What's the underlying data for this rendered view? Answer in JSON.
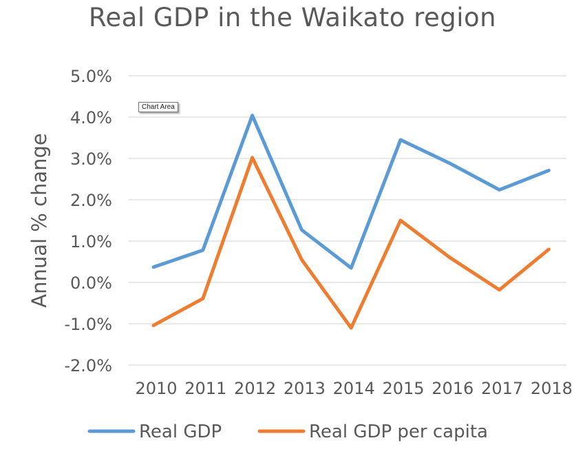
{
  "chart_data": {
    "type": "line",
    "title": "Real GDP in the Waikato region",
    "xlabel": "",
    "ylabel": "Annual % change",
    "categories": [
      "2010",
      "2011",
      "2012",
      "2013",
      "2014",
      "2015",
      "2016",
      "2017",
      "2018"
    ],
    "ylim": [
      -2.0,
      5.0
    ],
    "yticks": [
      "5.0%",
      "4.0%",
      "3.0%",
      "2.0%",
      "1.0%",
      "0.0%",
      "-1.0%",
      "-2.0%"
    ],
    "grid": true,
    "legend_position": "bottom",
    "series": [
      {
        "name": "Real GDP",
        "color": "#5b9bd5",
        "values": [
          0.37,
          0.78,
          4.04,
          1.27,
          0.35,
          3.45,
          2.88,
          2.24,
          2.71
        ]
      },
      {
        "name": "Real GDP per capita",
        "color": "#ed7d31",
        "values": [
          -1.04,
          -0.39,
          3.02,
          0.55,
          -1.1,
          1.5,
          0.6,
          -0.18,
          0.8
        ]
      }
    ]
  },
  "tooltip": {
    "label": "Chart Area"
  }
}
